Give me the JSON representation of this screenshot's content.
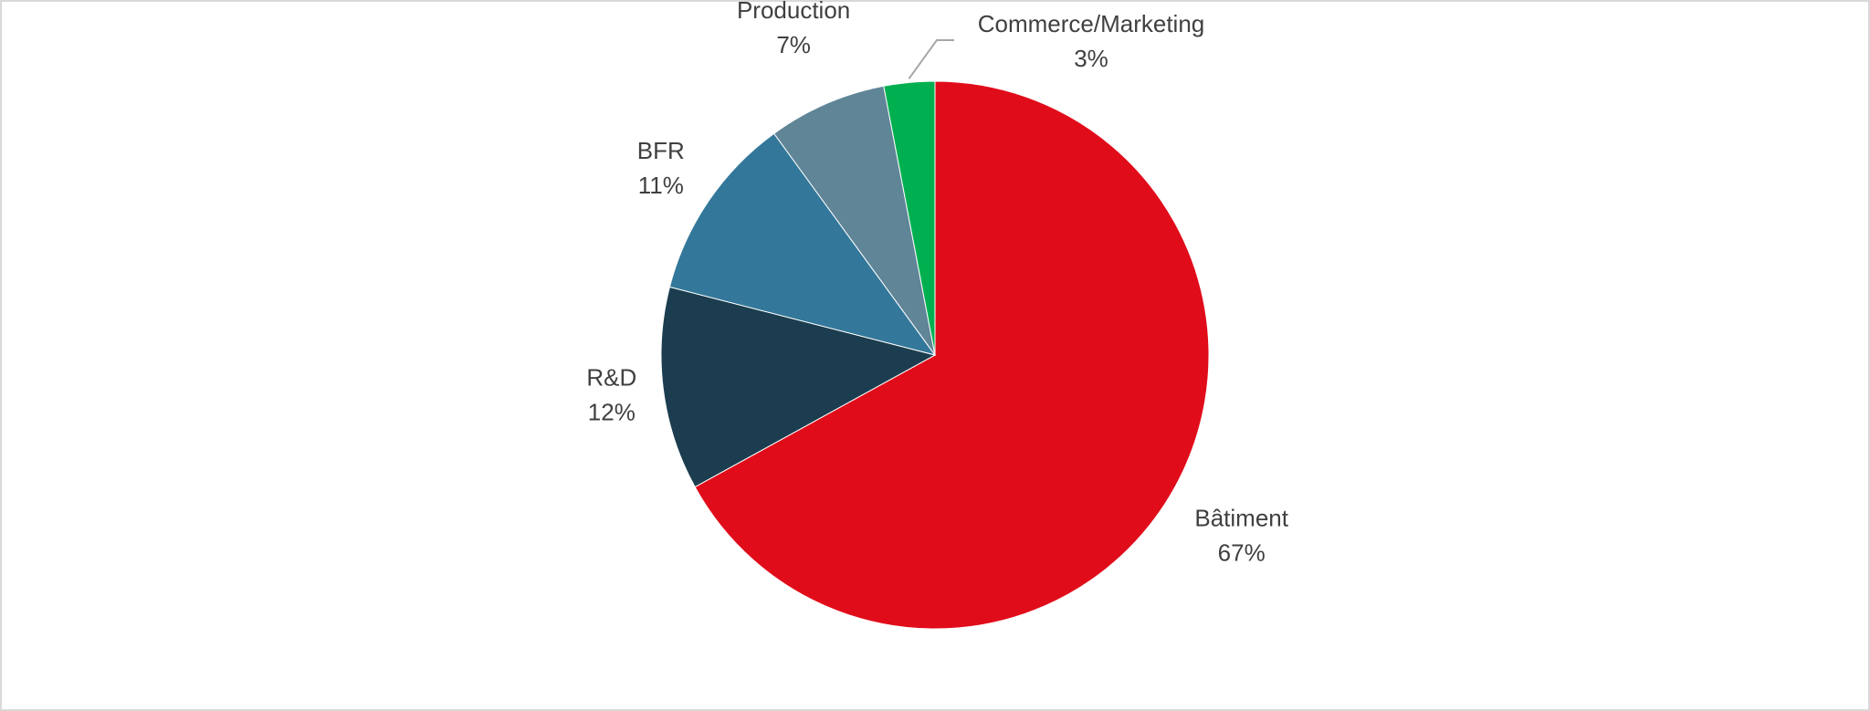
{
  "chart_data": {
    "type": "pie",
    "categories": [
      "Bâtiment",
      "R&D",
      "BFR",
      "Production",
      "Commerce/Marketing"
    ],
    "values": [
      67,
      12,
      11,
      7,
      3
    ],
    "value_labels": [
      "67%",
      "12%",
      "11%",
      "7%",
      "3%"
    ],
    "colors": [
      "#e10c1a",
      "#1b3d4f",
      "#33789a",
      "#5f8597",
      "#00b050"
    ]
  }
}
